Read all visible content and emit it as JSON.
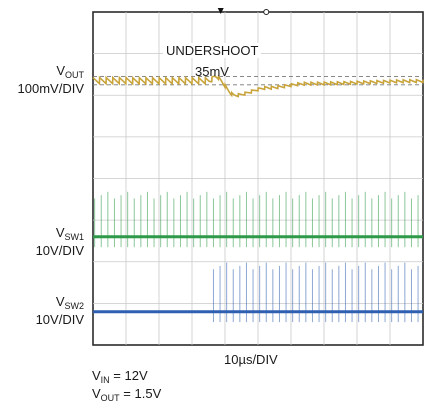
{
  "chart_data": {
    "type": "line",
    "title": "",
    "time_per_div": "10µs/DIV",
    "x_divisions": 10,
    "y_divisions": 8,
    "grid": true,
    "trigger_marker_x_div": 3.87,
    "reference_marker_x_div": 5.25,
    "annotations": [
      {
        "text": "UNDERSHOOT",
        "x_div": 3.4,
        "y_div": 0.8
      },
      {
        "text": "35mV",
        "x_div": 3.9,
        "y_div": 1.3
      }
    ],
    "conditions": [
      {
        "name": "V",
        "sub": "IN",
        "value": "= 12V"
      },
      {
        "name": "V",
        "sub": "OUT",
        "value": "= 1.5V"
      }
    ],
    "series": [
      {
        "name": "V",
        "sub": "OUT",
        "scale": "100mV/DIV",
        "color": "#c8a43a",
        "ref_levels_div": [
          1.55,
          1.75
        ],
        "load_step_time_div": 3.6,
        "undershoot_mv": 35,
        "keypoints": [
          [
            0,
            1.65
          ],
          [
            3.5,
            1.65
          ],
          [
            3.7,
            1.55
          ],
          [
            4.3,
            2.0
          ],
          [
            5.3,
            1.82
          ],
          [
            6.5,
            1.72
          ],
          [
            10,
            1.66
          ]
        ]
      },
      {
        "name": "V",
        "sub": "SW1",
        "scale": "10V/DIV",
        "color": "#2e9a49",
        "baseline_div": 5.4,
        "pulse_amplitude_div": 1.0,
        "pulse_period_div": 0.2,
        "pulse_top_div": 4.4
      },
      {
        "name": "V",
        "sub": "SW2",
        "scale": "10V/DIV",
        "color": "#2f5fb0",
        "baseline_div": 7.2,
        "pulse_amplitude_div": 1.1,
        "pulse_start_time_div": 3.6,
        "pulse_period_div": 0.2,
        "pulse_top_div": 6.1
      }
    ]
  }
}
